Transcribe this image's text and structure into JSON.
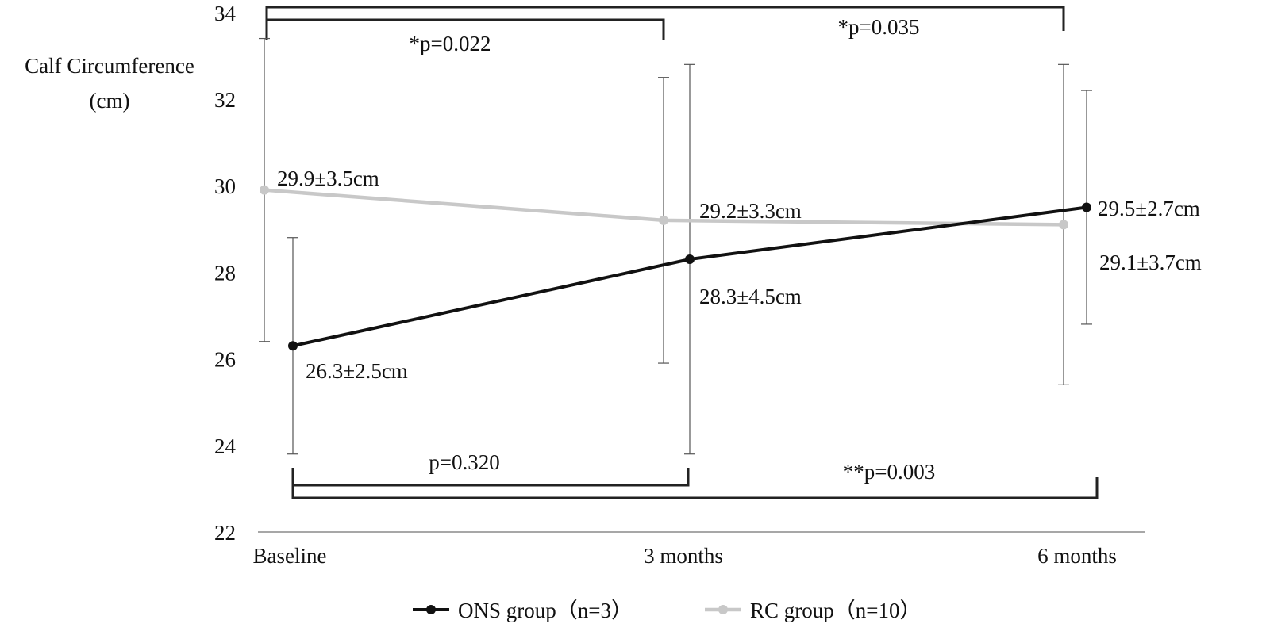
{
  "chart_data": {
    "type": "line",
    "ylabel_lines": [
      "Calf Circumference",
      "(cm)"
    ],
    "categories": [
      "Baseline",
      "3 months",
      "6 months"
    ],
    "y_ticks": [
      22,
      24,
      26,
      28,
      30,
      32,
      34
    ],
    "ylim": [
      22,
      34.5
    ],
    "grid": false,
    "legend_position": "bottom",
    "series": [
      {
        "name": "ONS group（n=3）",
        "color": "#111111",
        "values": [
          26.3,
          28.3,
          29.5
        ],
        "sd": [
          2.5,
          4.5,
          2.7
        ],
        "labels": [
          "26.3±2.5cm",
          "28.3±4.5cm",
          "29.5±2.7cm"
        ]
      },
      {
        "name": "RC group（n=10）",
        "color": "#c8c8c8",
        "values": [
          29.9,
          29.2,
          29.1
        ],
        "sd": [
          3.5,
          3.3,
          3.7
        ],
        "labels": [
          "29.9±3.5cm",
          "29.2±3.3cm",
          "29.1±3.7cm"
        ]
      }
    ],
    "comparisons": [
      {
        "group": "RC",
        "from": "Baseline",
        "to": "3 months",
        "label": "*p=0.022",
        "side": "top"
      },
      {
        "group": "RC",
        "from": "Baseline",
        "to": "6 months",
        "label": "*p=0.035",
        "side": "top"
      },
      {
        "group": "ONS",
        "from": "Baseline",
        "to": "3 months",
        "label": "p=0.320",
        "side": "bottom"
      },
      {
        "group": "ONS",
        "from": "Baseline",
        "to": "6 months",
        "label": "**p=0.003",
        "side": "bottom"
      }
    ]
  }
}
